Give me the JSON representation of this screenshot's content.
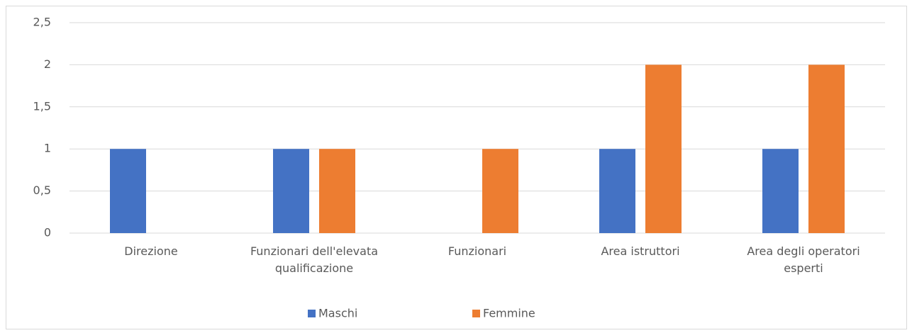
{
  "chart_data": {
    "type": "bar",
    "categories": [
      "Direzione",
      "Funzionari dell'elevata qualificazione",
      "Funzionari",
      "Area istruttori",
      "Area degli operatori esperti"
    ],
    "series": [
      {
        "name": "Maschi",
        "color": "#4472c4",
        "values": [
          1,
          1,
          0,
          1,
          1
        ]
      },
      {
        "name": "Femmine",
        "color": "#ed7d31",
        "values": [
          0,
          1,
          1,
          2,
          2
        ]
      }
    ],
    "ylim": [
      0,
      2.5
    ],
    "yticks": [
      0,
      {
        "value": 0.5,
        "label": "0,5"
      },
      1,
      {
        "value": 1.5,
        "label": "1,5"
      },
      2,
      {
        "value": 2.5,
        "label": "2,5"
      }
    ],
    "grid": true,
    "legend": "bottom"
  }
}
